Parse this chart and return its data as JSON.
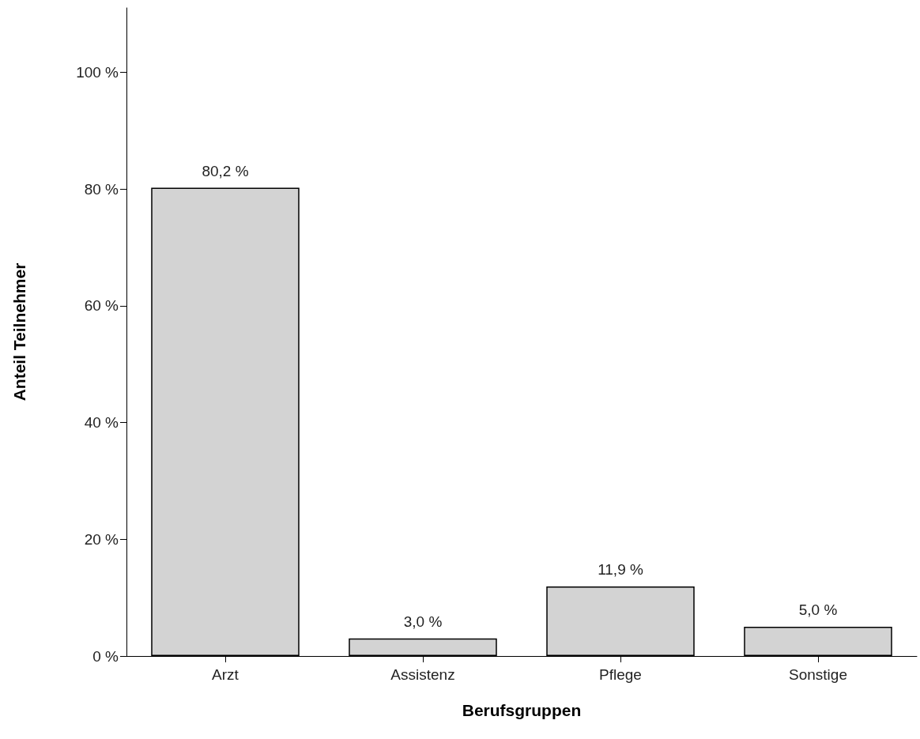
{
  "chart_data": {
    "type": "bar",
    "xlabel": "Berufsgruppen",
    "ylabel": "Anteil Teilnehmer",
    "categories": [
      "Arzt",
      "Assistenz",
      "Pflege",
      "Sonstige"
    ],
    "values": [
      80.2,
      3.0,
      11.9,
      5.0
    ],
    "value_labels": [
      "80,2 %",
      "3,0 %",
      "11,9 %",
      "5,0 %"
    ],
    "color": "#d3d3d3",
    "ylim": [
      0,
      111
    ],
    "yticks": [
      {
        "value": 0,
        "label": "0 %"
      },
      {
        "value": 20,
        "label": "20 %"
      },
      {
        "value": 40,
        "label": "40 %"
      },
      {
        "value": 60,
        "label": "60 %"
      },
      {
        "value": 80,
        "label": "80 %"
      },
      {
        "value": 100,
        "label": "100 %"
      }
    ],
    "grid": false
  }
}
